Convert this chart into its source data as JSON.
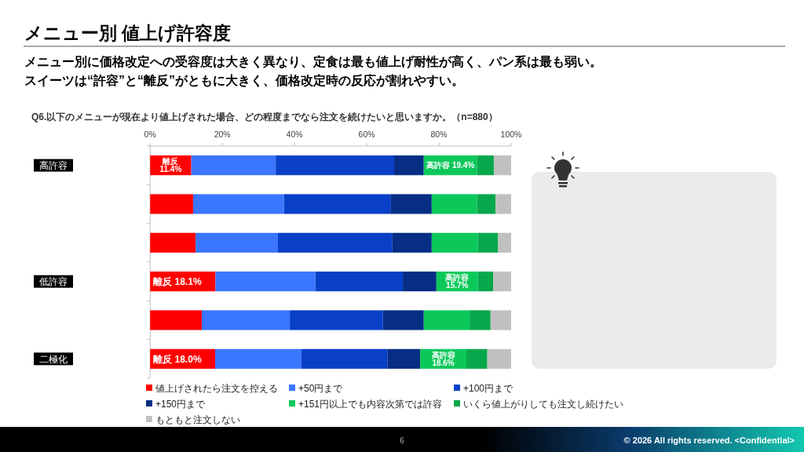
{
  "chart_data": {
    "type": "bar",
    "orientation": "horizontal",
    "stacked": true,
    "title": "メニュー別 値上げ許容度",
    "subtitle": "メニュー別に価格改定への受容度は大きく異なり、定食は最も値上げ耐性が高く、パン系は最も弱い。スイーツは“許容”と“離反”がともに大きく、価格改定時の反応が割れやすい。",
    "annotations": [
      "Q6.以下のメニューが現在より値上げされた場合、どの程度までなら注文を続けたいと思いますか。（n=880）",
      "6",
      "© 2026 All rights reserved. <Confidential>"
    ],
    "categories": [
      "高許容",
      null,
      null,
      "低許容",
      null,
      "二極化"
    ],
    "xlim": [
      0,
      100
    ],
    "xticks": [
      {
        "value": 0,
        "label": "0%"
      },
      {
        "value": 20,
        "label": "20%"
      },
      {
        "value": 40,
        "label": "40%"
      },
      {
        "value": 60,
        "label": "60%"
      },
      {
        "value": 80,
        "label": "80%"
      },
      {
        "value": 100,
        "label": "100%"
      }
    ],
    "legend": "bottom",
    "series": [
      {
        "name": "値上げされたら注文を控える",
        "color": "#ff0000",
        "values": [
          11.4,
          11.9,
          12.6,
          18.1,
          14.3,
          18.0
        ],
        "value_labels": [
          "離反 11.4%",
          null,
          null,
          "離反 18.1%",
          null,
          "離反 18.0%"
        ]
      },
      {
        "name": "+50円まで",
        "color": "#3a76ff",
        "values": [
          23.4,
          25.2,
          22.8,
          27.7,
          24.4,
          23.9
        ]
      },
      {
        "name": "+100円まで",
        "color": "#0a40c8",
        "values": [
          32.8,
          29.6,
          31.6,
          24.2,
          25.8,
          23.8
        ]
      },
      {
        "name": "+150円まで",
        "color": "#062e85",
        "values": [
          8.2,
          11.3,
          11.0,
          9.3,
          11.3,
          9.1
        ]
      },
      {
        "name": "+151円以上でも内容次第では許容",
        "color": "#0cc85a",
        "values": [
          14.8,
          12.6,
          12.8,
          11.5,
          12.7,
          12.8
        ],
        "value_labels": [
          "高許容 19.4%",
          null,
          null,
          "高許容 15.7%",
          null,
          "高許容 18.6%"
        ]
      },
      {
        "name": "いくら値上がりしても注文し続けたい",
        "color": "#07a84c",
        "values": [
          4.6,
          5.1,
          5.6,
          4.2,
          5.8,
          5.8
        ]
      },
      {
        "name": "もともと注文しない",
        "color": "#c0c0c0",
        "values": [
          4.8,
          4.3,
          3.6,
          5.0,
          5.7,
          6.6
        ]
      }
    ]
  }
}
